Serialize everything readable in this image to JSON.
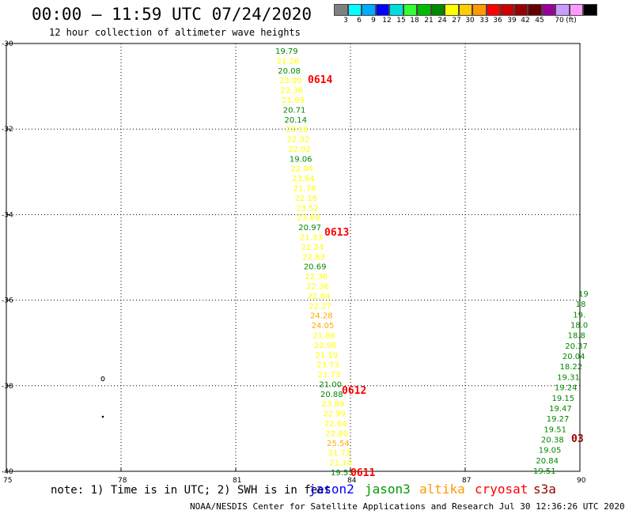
{
  "header": {
    "title": "00:00 – 11:59 UTC 07/24/2020",
    "subtitle": "12 hour collection of altimeter wave heights"
  },
  "color_scale": {
    "unit": "(ft)",
    "swatches": [
      "#808080",
      "#00ffff",
      "#00aaff",
      "#0000ff",
      "#00dddd",
      "#33ff33",
      "#00bb00",
      "#008800",
      "#ffff00",
      "#ffcc00",
      "#ff9900",
      "#ff0000",
      "#cc0000",
      "#990000",
      "#660000",
      "#990099",
      "#cc99ff",
      "#ff99ff",
      "#000000"
    ],
    "labels": [
      "3",
      "6",
      "9",
      "12",
      "15",
      "18",
      "21",
      "24",
      "27",
      "30",
      "33",
      "36",
      "39",
      "42",
      "45",
      "70"
    ]
  },
  "colors": {
    "green": "#008800",
    "yellow": "#ffff00",
    "orange": "#ffaa00",
    "red": "#ff0000",
    "darkred": "#990000",
    "grid": "#000000"
  },
  "map": {
    "lat_labels": [
      "-30",
      "-32",
      "-34",
      "-36",
      "-38",
      "-40"
    ],
    "lon_labels": [
      "75",
      "78",
      "81",
      "84",
      "87",
      "90"
    ],
    "lat_range": [
      -40,
      -30
    ],
    "lon_range": [
      75,
      90
    ]
  },
  "tracks": [
    {
      "id": "track-a",
      "values": [
        {
          "v": "19.79",
          "c": "green"
        },
        {
          "v": "21.26",
          "c": "yellow"
        },
        {
          "v": "20.08",
          "c": "green"
        },
        {
          "v": "23.00",
          "c": "yellow"
        },
        {
          "v": "22.36",
          "c": "yellow"
        },
        {
          "v": "21.99",
          "c": "yellow"
        },
        {
          "v": "20.71",
          "c": "green"
        },
        {
          "v": "20.14",
          "c": "green"
        },
        {
          "v": "23.16",
          "c": "yellow"
        },
        {
          "v": "22.32",
          "c": "yellow"
        },
        {
          "v": "22.02",
          "c": "yellow"
        },
        {
          "v": "19.06",
          "c": "green"
        },
        {
          "v": "22.04",
          "c": "yellow"
        },
        {
          "v": "23.64",
          "c": "yellow"
        },
        {
          "v": "21.78",
          "c": "yellow"
        },
        {
          "v": "22.16",
          "c": "yellow"
        },
        {
          "v": "23.52",
          "c": "yellow"
        },
        {
          "v": "23.69",
          "c": "yellow"
        },
        {
          "v": "20.97",
          "c": "green"
        },
        {
          "v": "21.33",
          "c": "yellow"
        },
        {
          "v": "21.24",
          "c": "yellow"
        },
        {
          "v": "22.83",
          "c": "yellow"
        },
        {
          "v": "20.69",
          "c": "green"
        },
        {
          "v": "22.36",
          "c": "yellow"
        },
        {
          "v": "22.36",
          "c": "yellow"
        },
        {
          "v": "22.84",
          "c": "yellow"
        },
        {
          "v": "22.27",
          "c": "yellow"
        },
        {
          "v": "24.28",
          "c": "orange"
        },
        {
          "v": "24.05",
          "c": "orange"
        },
        {
          "v": "21.86",
          "c": "yellow"
        },
        {
          "v": "22.96",
          "c": "yellow"
        },
        {
          "v": "21.19",
          "c": "yellow"
        },
        {
          "v": "23.73",
          "c": "yellow"
        },
        {
          "v": "21.73",
          "c": "yellow"
        },
        {
          "v": "21.00",
          "c": "green"
        },
        {
          "v": "20.88",
          "c": "green"
        },
        {
          "v": "23.89",
          "c": "yellow"
        },
        {
          "v": "22.99",
          "c": "yellow"
        },
        {
          "v": "22.64",
          "c": "yellow"
        },
        {
          "v": "22.80",
          "c": "yellow"
        },
        {
          "v": "25.54",
          "c": "orange"
        },
        {
          "v": "21.73",
          "c": "yellow"
        },
        {
          "v": "21.10",
          "c": "yellow"
        },
        {
          "v": "19.53",
          "c": "green"
        }
      ]
    },
    {
      "id": "track-b",
      "values": [
        {
          "v": "19",
          "c": "green"
        },
        {
          "v": "18",
          "c": "green"
        },
        {
          "v": "19.",
          "c": "green"
        },
        {
          "v": "18.0",
          "c": "green"
        },
        {
          "v": "18.8",
          "c": "green"
        },
        {
          "v": "20.37",
          "c": "green"
        },
        {
          "v": "20.04",
          "c": "green"
        },
        {
          "v": "18.22",
          "c": "green"
        },
        {
          "v": "19.31",
          "c": "green"
        },
        {
          "v": "19.24",
          "c": "green"
        },
        {
          "v": "19.15",
          "c": "green"
        },
        {
          "v": "19.47",
          "c": "green"
        },
        {
          "v": "19.27",
          "c": "green"
        },
        {
          "v": "19.51",
          "c": "green"
        },
        {
          "v": "20.38",
          "c": "green"
        },
        {
          "v": "19.05",
          "c": "green"
        },
        {
          "v": "20.84",
          "c": "green"
        },
        {
          "v": "19.51",
          "c": "green"
        }
      ]
    }
  ],
  "time_tags": [
    {
      "text": "0614",
      "c": "red"
    },
    {
      "text": "0613",
      "c": "red"
    },
    {
      "text": "0612",
      "c": "red"
    },
    {
      "text": "0611",
      "c": "red"
    },
    {
      "text": "03",
      "c": "darkred"
    }
  ],
  "notes": {
    "note": "note: 1) Time is in UTC; 2) SWH is in feet"
  },
  "legend": [
    {
      "text": "jason2",
      "color": "#0000ff"
    },
    {
      "text": "jason3",
      "color": "#009900"
    },
    {
      "text": "altika",
      "color": "#ff9900"
    },
    {
      "text": "cryosat",
      "color": "#ff0000"
    },
    {
      "text": "s3a",
      "color": "#990000"
    }
  ],
  "footer": "NOAA/NESDIS Center for Satellite Applications and Research   Jul 30 12:36:26 UTC 2020"
}
